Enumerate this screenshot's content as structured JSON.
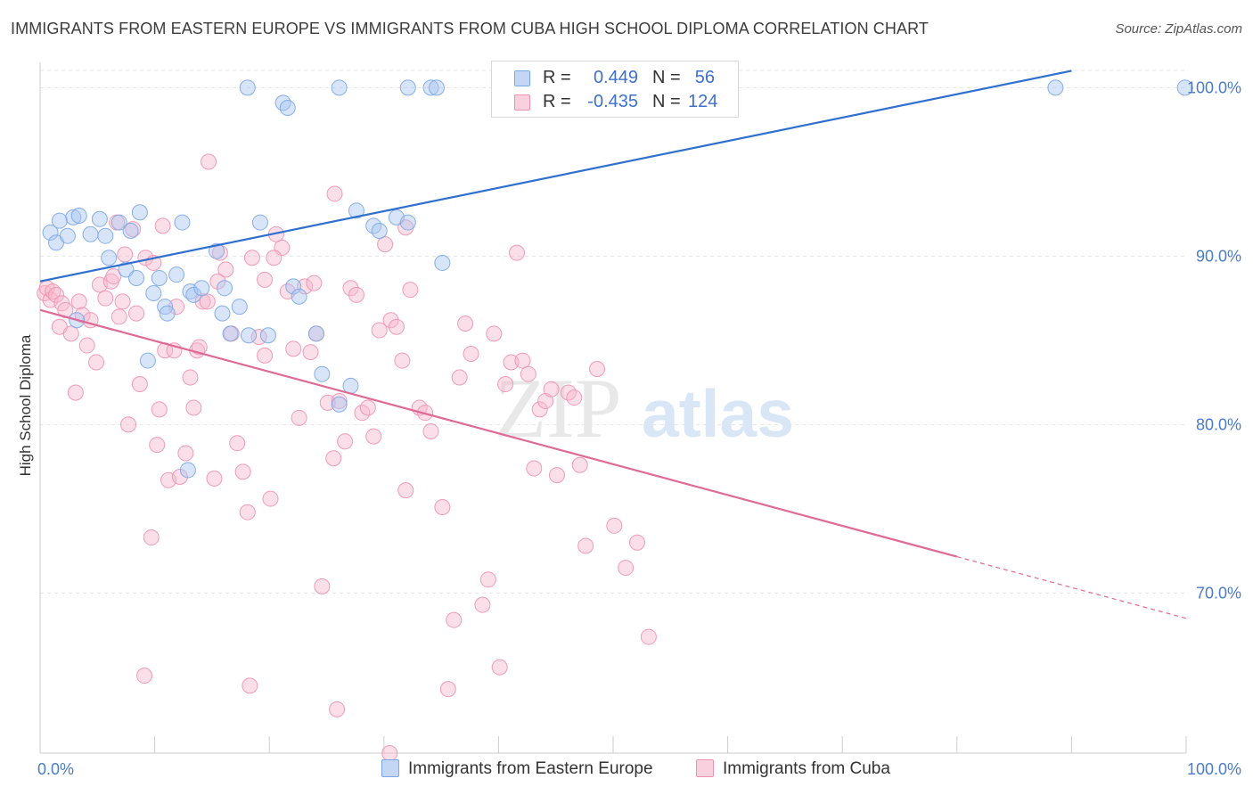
{
  "title": "IMMIGRANTS FROM EASTERN EUROPE VS IMMIGRANTS FROM CUBA HIGH SCHOOL DIPLOMA CORRELATION CHART",
  "source": "Source: ZipAtlas.com",
  "watermark": {
    "zip": "ZIP",
    "atlas": "atlas"
  },
  "colors": {
    "blue": "#a9c6f2",
    "blue_stroke": "#7aa7e6",
    "blue_line": "#2f6fcf",
    "pink": "#f6b8cc",
    "pink_stroke": "#ee92b0",
    "pink_line": "#e06a96",
    "tick_text": "#4a7cc7",
    "grid": "#e4e4e4"
  },
  "legend": {
    "rows": [
      {
        "r_label": "R =",
        "r_value": "0.449",
        "n_label": "N =",
        "n_value": "56"
      },
      {
        "r_label": "R =",
        "r_value": "-0.435",
        "n_label": "N =",
        "n_value": "124"
      }
    ]
  },
  "bottom_legend": [
    "Immigrants from Eastern Europe",
    "Immigrants from Cuba"
  ],
  "chart_data": {
    "type": "scatter",
    "ylabel": "High School Diploma",
    "xlabel": "",
    "xlim": [
      0,
      100
    ],
    "ylim": [
      60.5,
      101.5
    ],
    "x_tick_labels": [
      "0.0%",
      "100.0%"
    ],
    "y_ticks": [
      100,
      90,
      80,
      70
    ],
    "y_tick_labels": [
      "100.0%",
      "90.0%",
      "80.0%",
      "70.0%"
    ],
    "grid": true,
    "legend_placement": "top-center",
    "series": [
      {
        "name": "Immigrants from Eastern Europe",
        "trend": {
          "x0": 0,
          "y0": 88.5,
          "x1": 90,
          "y1": 101,
          "dashed_from": null
        },
        "points": [
          [
            0.9,
            91.4
          ],
          [
            1.4,
            90.8
          ],
          [
            1.7,
            92.1
          ],
          [
            2.4,
            91.2
          ],
          [
            2.9,
            92.3
          ],
          [
            3.4,
            92.4
          ],
          [
            3.2,
            86.2
          ],
          [
            4.4,
            91.3
          ],
          [
            5.2,
            92.2
          ],
          [
            5.7,
            91.2
          ],
          [
            6.0,
            89.9
          ],
          [
            6.9,
            92.0
          ],
          [
            7.5,
            89.2
          ],
          [
            7.9,
            91.5
          ],
          [
            8.4,
            88.7
          ],
          [
            8.7,
            92.6
          ],
          [
            9.4,
            83.8
          ],
          [
            9.9,
            87.8
          ],
          [
            10.4,
            88.7
          ],
          [
            10.9,
            87.0
          ],
          [
            11.1,
            86.6
          ],
          [
            11.9,
            88.9
          ],
          [
            12.4,
            92.0
          ],
          [
            13.1,
            87.9
          ],
          [
            13.4,
            87.7
          ],
          [
            14.1,
            88.1
          ],
          [
            15.4,
            90.3
          ],
          [
            15.9,
            86.6
          ],
          [
            16.1,
            88.1
          ],
          [
            16.6,
            85.4
          ],
          [
            17.4,
            87.0
          ],
          [
            18.2,
            85.3
          ],
          [
            19.2,
            92.0
          ],
          [
            19.9,
            85.3
          ],
          [
            21.2,
            99.1
          ],
          [
            21.6,
            98.8
          ],
          [
            22.1,
            88.2
          ],
          [
            22.6,
            87.6
          ],
          [
            24.1,
            85.4
          ],
          [
            24.6,
            83.0
          ],
          [
            26.1,
            81.2
          ],
          [
            27.1,
            82.3
          ],
          [
            27.6,
            92.7
          ],
          [
            29.1,
            91.8
          ],
          [
            29.6,
            91.5
          ],
          [
            31.1,
            92.3
          ],
          [
            32.1,
            92.0
          ],
          [
            35.1,
            89.6
          ],
          [
            18.1,
            100
          ],
          [
            26.1,
            100
          ],
          [
            32.1,
            100
          ],
          [
            34.1,
            100
          ],
          [
            34.6,
            100
          ],
          [
            88.6,
            100
          ],
          [
            99.9,
            100
          ],
          [
            12.9,
            77.3
          ]
        ]
      },
      {
        "name": "Immigrants from Cuba",
        "trend": {
          "x0": 0,
          "y0": 86.8,
          "x1": 100,
          "y1": 68.5,
          "dashed_from": 80
        },
        "points": [
          [
            0.4,
            87.8
          ],
          [
            0.6,
            88.1
          ],
          [
            0.9,
            87.4
          ],
          [
            1.1,
            87.9
          ],
          [
            1.4,
            87.7
          ],
          [
            1.7,
            85.8
          ],
          [
            1.9,
            87.2
          ],
          [
            2.2,
            86.8
          ],
          [
            2.7,
            85.4
          ],
          [
            3.1,
            81.9
          ],
          [
            3.4,
            87.3
          ],
          [
            3.7,
            86.5
          ],
          [
            4.1,
            84.7
          ],
          [
            4.4,
            86.2
          ],
          [
            4.9,
            83.7
          ],
          [
            5.2,
            88.3
          ],
          [
            5.7,
            87.5
          ],
          [
            6.2,
            88.5
          ],
          [
            6.4,
            88.8
          ],
          [
            6.7,
            92.0
          ],
          [
            6.9,
            86.4
          ],
          [
            7.2,
            87.3
          ],
          [
            7.4,
            90.1
          ],
          [
            7.7,
            80.0
          ],
          [
            8.1,
            91.6
          ],
          [
            8.4,
            86.6
          ],
          [
            8.7,
            82.4
          ],
          [
            9.2,
            89.9
          ],
          [
            9.7,
            73.3
          ],
          [
            9.9,
            89.6
          ],
          [
            10.2,
            78.8
          ],
          [
            10.4,
            80.9
          ],
          [
            10.7,
            91.8
          ],
          [
            10.9,
            84.4
          ],
          [
            11.2,
            76.7
          ],
          [
            11.7,
            84.4
          ],
          [
            12.2,
            76.9
          ],
          [
            12.7,
            78.3
          ],
          [
            13.1,
            82.8
          ],
          [
            13.4,
            81.0
          ],
          [
            13.7,
            84.4
          ],
          [
            14.2,
            87.3
          ],
          [
            14.7,
            95.6
          ],
          [
            15.2,
            76.8
          ],
          [
            15.7,
            90.2
          ],
          [
            16.2,
            89.2
          ],
          [
            16.7,
            85.4
          ],
          [
            17.2,
            78.9
          ],
          [
            17.7,
            77.2
          ],
          [
            18.1,
            74.8
          ],
          [
            18.5,
            89.9
          ],
          [
            19.1,
            85.2
          ],
          [
            19.6,
            88.6
          ],
          [
            20.1,
            75.6
          ],
          [
            20.6,
            91.3
          ],
          [
            21.1,
            90.5
          ],
          [
            21.6,
            87.9
          ],
          [
            22.1,
            84.5
          ],
          [
            22.6,
            80.4
          ],
          [
            23.1,
            88.2
          ],
          [
            23.6,
            84.3
          ],
          [
            24.1,
            85.4
          ],
          [
            24.6,
            70.4
          ],
          [
            25.1,
            81.3
          ],
          [
            25.6,
            78.0
          ],
          [
            26.1,
            81.4
          ],
          [
            26.6,
            79.0
          ],
          [
            27.1,
            88.1
          ],
          [
            27.6,
            87.7
          ],
          [
            28.1,
            80.7
          ],
          [
            28.6,
            81.0
          ],
          [
            29.1,
            79.3
          ],
          [
            29.6,
            85.6
          ],
          [
            30.1,
            90.7
          ],
          [
            30.6,
            86.2
          ],
          [
            31.1,
            85.8
          ],
          [
            31.6,
            83.8
          ],
          [
            31.9,
            76.1
          ],
          [
            32.3,
            88.0
          ],
          [
            33.1,
            81.0
          ],
          [
            33.6,
            80.7
          ],
          [
            34.1,
            79.6
          ],
          [
            35.1,
            75.1
          ],
          [
            35.6,
            64.3
          ],
          [
            36.1,
            68.4
          ],
          [
            36.6,
            82.8
          ],
          [
            37.1,
            86.0
          ],
          [
            37.6,
            84.2
          ],
          [
            38.6,
            69.3
          ],
          [
            39.1,
            70.8
          ],
          [
            39.6,
            85.4
          ],
          [
            40.1,
            65.6
          ],
          [
            40.6,
            82.4
          ],
          [
            41.1,
            83.7
          ],
          [
            41.6,
            90.2
          ],
          [
            42.1,
            83.8
          ],
          [
            42.6,
            83.0
          ],
          [
            43.1,
            77.4
          ],
          [
            43.6,
            80.9
          ],
          [
            44.1,
            81.4
          ],
          [
            44.6,
            82.1
          ],
          [
            45.1,
            77.0
          ],
          [
            46.1,
            81.9
          ],
          [
            46.6,
            81.6
          ],
          [
            47.1,
            77.6
          ],
          [
            47.6,
            72.8
          ],
          [
            48.6,
            83.3
          ],
          [
            50.1,
            74.0
          ],
          [
            51.1,
            71.5
          ],
          [
            52.1,
            73.0
          ],
          [
            53.1,
            67.4
          ],
          [
            14.6,
            87.3
          ],
          [
            13.9,
            84.6
          ],
          [
            15.5,
            88.5
          ],
          [
            19.6,
            84.1
          ],
          [
            20.4,
            89.9
          ],
          [
            23.9,
            88.4
          ],
          [
            25.7,
            93.7
          ],
          [
            31.9,
            91.7
          ],
          [
            11.9,
            87.0
          ],
          [
            9.1,
            65.1
          ],
          [
            18.3,
            64.5
          ],
          [
            25.9,
            63.1
          ],
          [
            30.5,
            60.5
          ]
        ]
      }
    ]
  }
}
